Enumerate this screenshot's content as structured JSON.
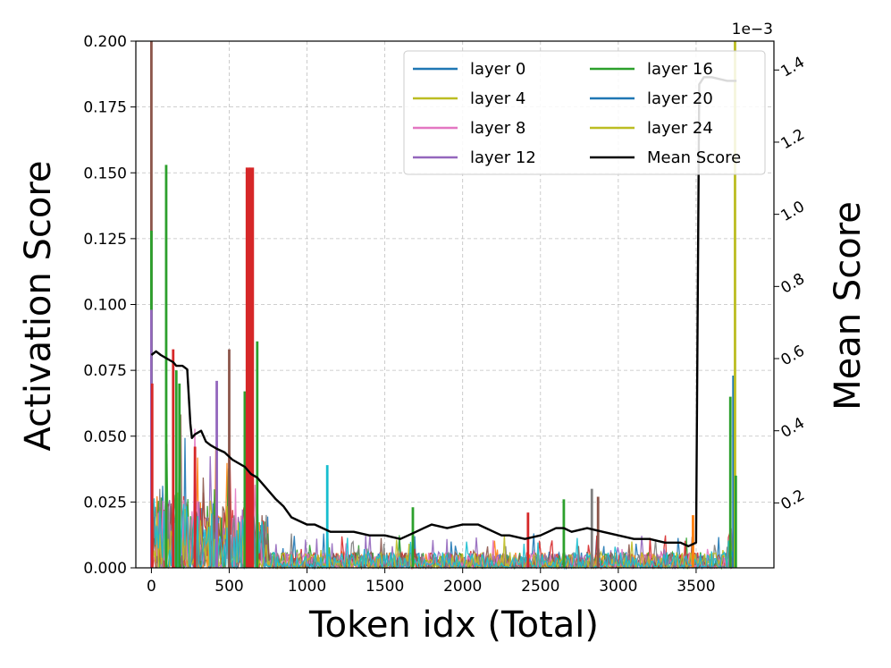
{
  "chart_data": {
    "type": "line",
    "xlabel": "Token idx (Total)",
    "ylabel": "Activation Score",
    "y2label": "Mean Score",
    "y2_multiplier_label": "1e−3",
    "xlim": [
      -100,
      4000
    ],
    "ylim": [
      0,
      0.2
    ],
    "y2lim": [
      0.02,
      1.48
    ],
    "xticks": [
      0,
      500,
      1000,
      1500,
      2000,
      2500,
      3000,
      3500
    ],
    "xtick_labels": [
      "0",
      "500",
      "1000",
      "1500",
      "2000",
      "2500",
      "3000",
      "3500"
    ],
    "yticks": [
      0,
      0.025,
      0.05,
      0.075,
      0.1,
      0.125,
      0.15,
      0.175,
      0.2
    ],
    "ytick_labels": [
      "0.000",
      "0.025",
      "0.050",
      "0.075",
      "0.100",
      "0.125",
      "0.150",
      "0.175",
      "0.200"
    ],
    "y2ticks": [
      0.2,
      0.4,
      0.6,
      0.8,
      1.0,
      1.2,
      1.4
    ],
    "y2tick_labels": [
      "0.2",
      "0.4",
      "0.6",
      "0.8",
      "1.0",
      "1.2",
      "1.4"
    ],
    "grid": true,
    "legend_position": "top-right",
    "legend_columns": 2,
    "legend": [
      {
        "name": "layer 0",
        "color": "#1f77b4"
      },
      {
        "name": "layer 4",
        "color": "#bcbd22"
      },
      {
        "name": "layer 8",
        "color": "#e377c2"
      },
      {
        "name": "layer 12",
        "color": "#9467bd"
      },
      {
        "name": "layer 16",
        "color": "#2ca02c"
      },
      {
        "name": "layer 20",
        "color": "#1f77b4"
      },
      {
        "name": "layer 24",
        "color": "#bcbd22"
      },
      {
        "name": "Mean Score",
        "color": "#000000"
      }
    ],
    "noise_colors": [
      "#1f77b4",
      "#ff7f0e",
      "#2ca02c",
      "#d62728",
      "#9467bd",
      "#8c564b",
      "#e377c2",
      "#7f7f7f",
      "#bcbd22",
      "#17becf"
    ],
    "spikes": [
      {
        "x": 0,
        "y": 0.2,
        "color": "#8c564b"
      },
      {
        "x": 0,
        "y": 0.128,
        "color": "#2ca02c"
      },
      {
        "x": 0,
        "y": 0.098,
        "color": "#9467bd"
      },
      {
        "x": 5,
        "y": 0.07,
        "color": "#d62728"
      },
      {
        "x": 95,
        "y": 0.153,
        "color": "#2ca02c"
      },
      {
        "x": 140,
        "y": 0.083,
        "color": "#d62728"
      },
      {
        "x": 160,
        "y": 0.075,
        "color": "#2ca02c"
      },
      {
        "x": 180,
        "y": 0.07,
        "color": "#2ca02c"
      },
      {
        "x": 280,
        "y": 0.046,
        "color": "#d62728"
      },
      {
        "x": 420,
        "y": 0.071,
        "color": "#9467bd"
      },
      {
        "x": 500,
        "y": 0.083,
        "color": "#8c564b"
      },
      {
        "x": 600,
        "y": 0.067,
        "color": "#2ca02c"
      },
      {
        "x": 620,
        "y": 0.152,
        "color": "#d62728",
        "width": 5
      },
      {
        "x": 645,
        "y": 0.152,
        "color": "#d62728",
        "width": 5
      },
      {
        "x": 680,
        "y": 0.086,
        "color": "#2ca02c"
      },
      {
        "x": 1130,
        "y": 0.039,
        "color": "#17becf"
      },
      {
        "x": 1680,
        "y": 0.023,
        "color": "#2ca02c"
      },
      {
        "x": 2420,
        "y": 0.021,
        "color": "#d62728"
      },
      {
        "x": 2650,
        "y": 0.026,
        "color": "#2ca02c"
      },
      {
        "x": 2830,
        "y": 0.03,
        "color": "#7f7f7f"
      },
      {
        "x": 2870,
        "y": 0.027,
        "color": "#8c564b"
      },
      {
        "x": 3480,
        "y": 0.02,
        "color": "#ff7f0e"
      },
      {
        "x": 3720,
        "y": 0.065,
        "color": "#2ca02c"
      },
      {
        "x": 3740,
        "y": 0.073,
        "color": "#1f77b4"
      },
      {
        "x": 3750,
        "y": 0.2,
        "color": "#bcbd22"
      },
      {
        "x": 3755,
        "y": 0.035,
        "color": "#2ca02c"
      }
    ],
    "mean_series": {
      "name": "Mean Score",
      "x": [
        0,
        30,
        60,
        100,
        140,
        160,
        200,
        230,
        250,
        260,
        280,
        320,
        350,
        380,
        420,
        470,
        520,
        560,
        600,
        640,
        680,
        720,
        760,
        800,
        850,
        900,
        950,
        1000,
        1050,
        1100,
        1150,
        1200,
        1300,
        1400,
        1500,
        1600,
        1650,
        1700,
        1750,
        1800,
        1900,
        2000,
        2100,
        2150,
        2200,
        2250,
        2300,
        2400,
        2500,
        2550,
        2600,
        2650,
        2700,
        2800,
        2900,
        3000,
        3100,
        3200,
        3300,
        3400,
        3450,
        3500,
        3520,
        3550,
        3600,
        3700,
        3760
      ],
      "y": [
        0.61,
        0.62,
        0.61,
        0.6,
        0.59,
        0.58,
        0.58,
        0.57,
        0.42,
        0.38,
        0.39,
        0.4,
        0.37,
        0.36,
        0.35,
        0.34,
        0.32,
        0.31,
        0.3,
        0.28,
        0.27,
        0.25,
        0.23,
        0.21,
        0.19,
        0.16,
        0.15,
        0.14,
        0.14,
        0.13,
        0.12,
        0.12,
        0.12,
        0.11,
        0.11,
        0.1,
        0.11,
        0.12,
        0.13,
        0.14,
        0.13,
        0.14,
        0.14,
        0.13,
        0.12,
        0.11,
        0.11,
        0.1,
        0.11,
        0.12,
        0.13,
        0.13,
        0.12,
        0.13,
        0.12,
        0.11,
        0.1,
        0.1,
        0.09,
        0.09,
        0.08,
        0.09,
        1.36,
        1.38,
        1.38,
        1.37,
        1.37
      ]
    }
  }
}
